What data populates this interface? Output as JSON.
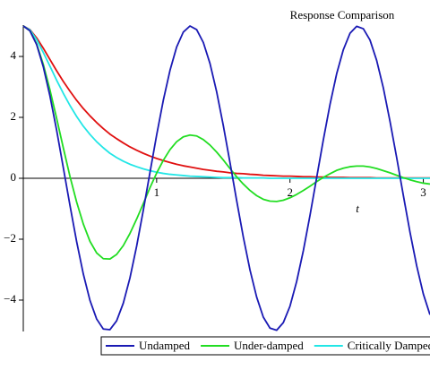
{
  "chart_data": {
    "type": "line",
    "title": "Response Comparison",
    "x_label": "t",
    "x": [
      0,
      0.05,
      0.1,
      0.15,
      0.2,
      0.25,
      0.3,
      0.35,
      0.4,
      0.45,
      0.5,
      0.55,
      0.6,
      0.65,
      0.7,
      0.75,
      0.8,
      0.85,
      0.9,
      0.95,
      1,
      1.05,
      1.1,
      1.15,
      1.2,
      1.25,
      1.3,
      1.35,
      1.4,
      1.45,
      1.5,
      1.55,
      1.6,
      1.65,
      1.7,
      1.75,
      1.8,
      1.85,
      1.9,
      1.95,
      2,
      2.05,
      2.1,
      2.15,
      2.2,
      2.25,
      2.3,
      2.35,
      2.4,
      2.45,
      2.5,
      2.55,
      2.6,
      2.65,
      2.7,
      2.75,
      2.8,
      2.85,
      2.9,
      2.95,
      3,
      3.05
    ],
    "series": [
      {
        "name": "Undamped",
        "color": "#1a1ab4",
        "values": [
          5,
          4.84,
          4.39,
          3.66,
          2.7,
          1.58,
          0.35,
          -0.89,
          -2.08,
          -3.14,
          -4.01,
          -4.62,
          -4.95,
          -4.97,
          -4.68,
          -4.1,
          -3.27,
          -2.23,
          -1.05,
          0.19,
          1.42,
          2.56,
          3.54,
          4.31,
          4.8,
          5,
          4.88,
          4.46,
          3.77,
          2.84,
          1.73,
          0.52,
          -0.73,
          -1.93,
          -3.01,
          -3.9,
          -4.56,
          -4.92,
          -4.99,
          -4.74,
          -4.2,
          -3.39,
          -2.38,
          -1.22,
          0.02,
          1.26,
          2.42,
          3.43,
          4.22,
          4.76,
          4.99,
          4.91,
          4.54,
          3.87,
          2.97,
          1.87,
          0.68,
          -0.56,
          -1.77,
          -2.87,
          -3.8,
          -4.48
        ]
      },
      {
        "name": "Under-damped",
        "color": "#22dd22",
        "values": [
          5,
          4.84,
          4.41,
          3.74,
          2.9,
          1.97,
          1,
          0.06,
          -0.78,
          -1.5,
          -2.07,
          -2.45,
          -2.64,
          -2.65,
          -2.5,
          -2.21,
          -1.81,
          -1.34,
          -0.83,
          -0.31,
          0.17,
          0.59,
          0.94,
          1.2,
          1.36,
          1.42,
          1.39,
          1.27,
          1.09,
          0.86,
          0.6,
          0.32,
          0.05,
          -0.19,
          -0.4,
          -0.57,
          -0.69,
          -0.75,
          -0.76,
          -0.72,
          -0.64,
          -0.53,
          -0.4,
          -0.26,
          -0.11,
          0.03,
          0.15,
          0.26,
          0.33,
          0.38,
          0.4,
          0.4,
          0.37,
          0.32,
          0.25,
          0.18,
          0.1,
          0.02,
          -0.05,
          -0.11,
          -0.16,
          -0.19
        ]
      },
      {
        "name": "Critically Damped",
        "color": "#22e6e6",
        "values": [
          5,
          4.87,
          4.55,
          4.13,
          3.68,
          3.22,
          2.79,
          2.39,
          2.03,
          1.71,
          1.44,
          1.2,
          1,
          0.82,
          0.68,
          0.56,
          0.46,
          0.38,
          0.31,
          0.25,
          0.2,
          0.16,
          0.13,
          0.11,
          0.09,
          0.07,
          0.06,
          0.05,
          0.04,
          0.03,
          0.02,
          0.02,
          0.02,
          0.01,
          0.01,
          0.01,
          0.01,
          0,
          0,
          0,
          0,
          0,
          0,
          0,
          0,
          0,
          0,
          0,
          0,
          0,
          0,
          0,
          0,
          0,
          0,
          0,
          0,
          0,
          0,
          0,
          0,
          0
        ]
      },
      {
        "color": "#e01010",
        "values": [
          5,
          4.88,
          4.61,
          4.27,
          3.9,
          3.53,
          3.18,
          2.86,
          2.56,
          2.29,
          2.05,
          1.83,
          1.63,
          1.45,
          1.3,
          1.16,
          1.03,
          0.92,
          0.82,
          0.73,
          0.65,
          0.58,
          0.52,
          0.46,
          0.41,
          0.37,
          0.33,
          0.29,
          0.26,
          0.23,
          0.21,
          0.18,
          0.16,
          0.15,
          0.13,
          0.12,
          0.1,
          0.09,
          0.08,
          0.07,
          0.07,
          0.06,
          0.05,
          0.05,
          0.04,
          0.04,
          0.03,
          0.03,
          0.03,
          0.02,
          0.02,
          0.02,
          0.02,
          0.01,
          0.01,
          0.01,
          0.01,
          0.01,
          0.01,
          0.01,
          0.01,
          0.01
        ]
      }
    ],
    "xlim": [
      0,
      3.05
    ],
    "ylim": [
      -5.03,
      5.03
    ],
    "xticks": [
      1,
      2,
      3
    ],
    "yticks": [
      {
        "value": -4,
        "label": "−4"
      },
      {
        "value": -2,
        "label": "−2"
      },
      0,
      2,
      4
    ],
    "legend": "bottom"
  }
}
